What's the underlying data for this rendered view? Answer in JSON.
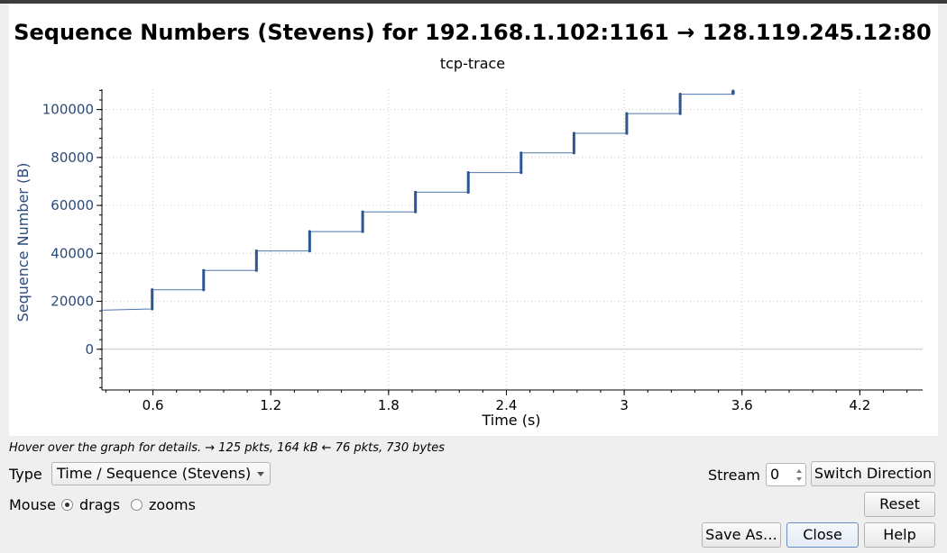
{
  "chart_data": {
    "type": "scatter",
    "title": "Sequence Numbers (Stevens) for 192.168.1.102:1161 → 128.119.245.12:80",
    "subtitle": "tcp-trace",
    "xlabel": "Time (s)",
    "ylabel": "Sequence Number (B)",
    "xlim": [
      0.34,
      4.52
    ],
    "ylim": [
      -17000,
      108500
    ],
    "xticks": [
      0.6,
      1.2,
      1.8,
      2.4,
      3,
      3.6,
      4.2
    ],
    "xtick_labels": [
      "0.6",
      "1.2",
      "1.8",
      "2.4",
      "3",
      "3.6",
      "4.2"
    ],
    "yticks": [
      0,
      20000,
      40000,
      60000,
      80000,
      100000
    ],
    "ytick_labels": [
      "0",
      "20000",
      "40000",
      "60000",
      "80000",
      "100000"
    ],
    "grid": true,
    "series": [
      {
        "name": "",
        "color": "#2c5694",
        "segments": [
          {
            "t": 0.596,
            "seq_start": 16800,
            "seq_end": 24800
          },
          {
            "t": 0.858,
            "seq_start": 24800,
            "seq_end": 32900
          },
          {
            "t": 1.127,
            "seq_start": 32900,
            "seq_end": 41000
          },
          {
            "t": 1.398,
            "seq_start": 41000,
            "seq_end": 49100
          },
          {
            "t": 1.668,
            "seq_start": 49100,
            "seq_end": 57300
          },
          {
            "t": 1.937,
            "seq_start": 57300,
            "seq_end": 65500
          },
          {
            "t": 2.206,
            "seq_start": 65500,
            "seq_end": 73700
          },
          {
            "t": 2.475,
            "seq_start": 73700,
            "seq_end": 81900
          },
          {
            "t": 2.744,
            "seq_start": 81900,
            "seq_end": 90100
          },
          {
            "t": 3.013,
            "seq_start": 90100,
            "seq_end": 98300
          },
          {
            "t": 3.285,
            "seq_start": 98300,
            "seq_end": 106400
          },
          {
            "t": 3.555,
            "seq_start": 106700,
            "seq_end": 107700
          }
        ],
        "points_per_segment": 11,
        "baseline_start": {
          "t": 0.34,
          "seq": 16300
        }
      }
    ]
  },
  "status": {
    "hint": "Hover over the graph for details. → 125 pkts, 164 kB ← 76 pkts, 730 bytes"
  },
  "controls": {
    "type_label": "Type",
    "type_value": "Time / Sequence (Stevens)",
    "stream_label": "Stream",
    "stream_value": "0",
    "switch_direction": "Switch Direction",
    "mouse_label": "Mouse",
    "drags_label": "drags",
    "zooms_label": "zooms",
    "mouse_mode": "drags",
    "reset": "Reset",
    "save_as": "Save As…",
    "close": "Close",
    "help": "Help"
  }
}
